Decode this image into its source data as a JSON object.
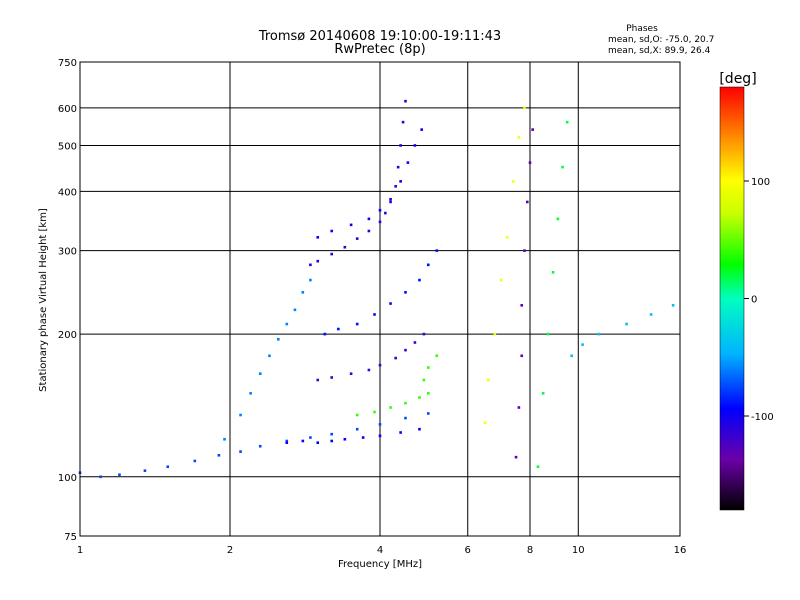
{
  "chart_data": {
    "type": "scatter",
    "title": "Tromsø 20140608 19:10:00-19:11:43",
    "subtitle": "RwPretec (8p)",
    "xlabel": "Frequency [MHz]",
    "ylabel": "Stationary phase Virtual Height [km]",
    "x_scale": "log",
    "y_scale": "log",
    "xlim": [
      1,
      16
    ],
    "ylim": [
      75,
      750
    ],
    "x_ticks": [
      1,
      2,
      4,
      6,
      8,
      10,
      16
    ],
    "y_ticks": [
      75,
      100,
      200,
      300,
      400,
      500,
      600,
      750
    ],
    "grid": true,
    "phase_header": {
      "title": "Phases",
      "line_o": "mean, sd,O: -75.0, 20.7",
      "line_x": "mean, sd,X: 89.9, 26.4"
    },
    "colorbar": {
      "label": "[deg]",
      "range": [
        -180,
        180
      ],
      "ticks": [
        100,
        0,
        -100
      ]
    },
    "traces": [
      {
        "name": "",
        "phase": -75,
        "points": [
          [
            1.0,
            102
          ],
          [
            1.1,
            100
          ],
          [
            1.2,
            101
          ],
          [
            1.35,
            103
          ],
          [
            1.5,
            105
          ],
          [
            1.7,
            108
          ],
          [
            1.9,
            111
          ],
          [
            2.1,
            113
          ],
          [
            2.3,
            116
          ],
          [
            2.6,
            119
          ],
          [
            2.9,
            121
          ],
          [
            3.2,
            123
          ],
          [
            3.6,
            126
          ],
          [
            4.0,
            129
          ],
          [
            4.5,
            133
          ],
          [
            5.0,
            136
          ]
        ]
      },
      {
        "name": "",
        "phase": -95,
        "points": [
          [
            2.6,
            118
          ],
          [
            2.8,
            119
          ],
          [
            3.0,
            118
          ],
          [
            3.2,
            119
          ],
          [
            3.4,
            120
          ],
          [
            3.7,
            121
          ],
          [
            4.0,
            122
          ],
          [
            4.4,
            124
          ],
          [
            4.8,
            126
          ]
        ]
      },
      {
        "name": "",
        "phase": -110,
        "points": [
          [
            2.9,
            280
          ],
          [
            3.0,
            285
          ],
          [
            3.2,
            295
          ],
          [
            3.4,
            305
          ],
          [
            3.6,
            318
          ],
          [
            3.8,
            330
          ],
          [
            4.0,
            345
          ],
          [
            4.1,
            360
          ],
          [
            4.2,
            380
          ],
          [
            4.3,
            410
          ],
          [
            4.35,
            450
          ],
          [
            4.4,
            500
          ],
          [
            4.45,
            560
          ],
          [
            4.5,
            620
          ]
        ]
      },
      {
        "name": "",
        "phase": -100,
        "points": [
          [
            3.0,
            320
          ],
          [
            3.2,
            330
          ],
          [
            3.5,
            340
          ],
          [
            3.8,
            350
          ],
          [
            4.0,
            365
          ],
          [
            4.2,
            385
          ],
          [
            4.4,
            420
          ],
          [
            4.55,
            460
          ],
          [
            4.7,
            500
          ],
          [
            4.85,
            540
          ]
        ]
      },
      {
        "name": "",
        "phase": -120,
        "points": [
          [
            3.0,
            160
          ],
          [
            3.2,
            162
          ],
          [
            3.5,
            165
          ],
          [
            3.8,
            168
          ],
          [
            4.0,
            172
          ],
          [
            4.3,
            178
          ],
          [
            4.5,
            185
          ],
          [
            4.7,
            192
          ],
          [
            4.9,
            200
          ]
        ]
      },
      {
        "name": "",
        "phase": -90,
        "points": [
          [
            3.1,
            200
          ],
          [
            3.3,
            205
          ],
          [
            3.6,
            210
          ],
          [
            3.9,
            220
          ],
          [
            4.2,
            232
          ],
          [
            4.5,
            245
          ],
          [
            4.8,
            260
          ],
          [
            5.0,
            280
          ],
          [
            5.2,
            300
          ]
        ]
      },
      {
        "name": "",
        "phase": -60,
        "points": [
          [
            1.95,
            120
          ],
          [
            2.1,
            135
          ],
          [
            2.2,
            150
          ],
          [
            2.3,
            165
          ],
          [
            2.4,
            180
          ],
          [
            2.5,
            195
          ],
          [
            2.6,
            210
          ],
          [
            2.7,
            225
          ],
          [
            2.8,
            245
          ],
          [
            2.9,
            260
          ]
        ]
      },
      {
        "name": "",
        "phase": 40,
        "points": [
          [
            3.6,
            135
          ],
          [
            3.9,
            137
          ],
          [
            4.2,
            140
          ],
          [
            4.5,
            143
          ],
          [
            4.8,
            147
          ],
          [
            5.0,
            150
          ],
          [
            4.9,
            160
          ],
          [
            5.0,
            170
          ],
          [
            5.2,
            180
          ]
        ]
      },
      {
        "name": "",
        "phase": 95,
        "points": [
          [
            6.5,
            130
          ],
          [
            6.6,
            160
          ],
          [
            6.8,
            200
          ],
          [
            7.0,
            260
          ],
          [
            7.2,
            320
          ],
          [
            7.4,
            420
          ],
          [
            7.6,
            520
          ],
          [
            7.8,
            600
          ]
        ]
      },
      {
        "name": "",
        "phase": -130,
        "points": [
          [
            7.5,
            110
          ],
          [
            7.6,
            140
          ],
          [
            7.7,
            180
          ],
          [
            7.7,
            230
          ],
          [
            7.8,
            300
          ],
          [
            7.9,
            380
          ],
          [
            8.0,
            460
          ],
          [
            8.1,
            540
          ]
        ]
      },
      {
        "name": "",
        "phase": 20,
        "points": [
          [
            8.3,
            105
          ],
          [
            8.5,
            150
          ],
          [
            8.7,
            200
          ],
          [
            8.9,
            270
          ],
          [
            9.1,
            350
          ],
          [
            9.3,
            450
          ],
          [
            9.5,
            560
          ]
        ]
      },
      {
        "name": "",
        "phase": -40,
        "points": [
          [
            9.7,
            180
          ],
          [
            10.2,
            190
          ],
          [
            11.0,
            200
          ],
          [
            12.5,
            210
          ],
          [
            14.0,
            220
          ],
          [
            15.5,
            230
          ]
        ]
      }
    ]
  }
}
